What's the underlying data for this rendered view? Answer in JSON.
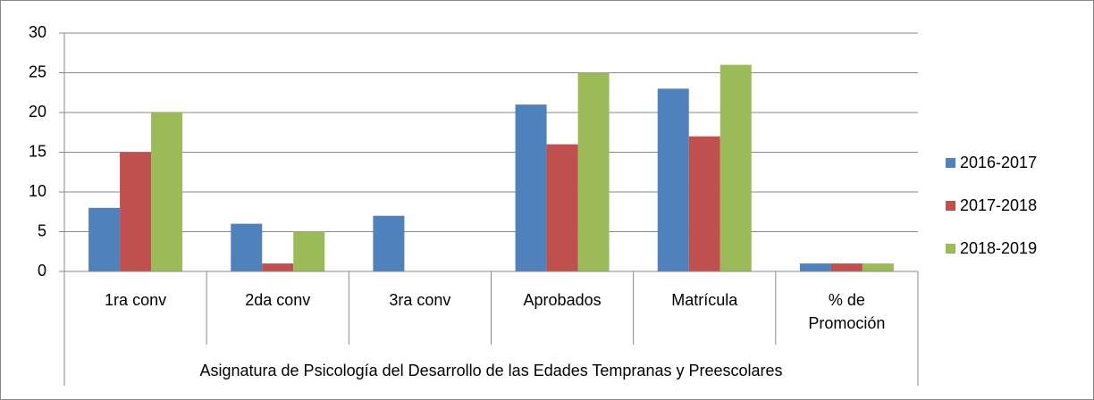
{
  "chart_data": {
    "type": "bar",
    "categories": [
      "1ra conv",
      "2da conv",
      "3ra conv",
      "Aprobados",
      "Matrícula",
      "% de Promoción"
    ],
    "group_label": "Asignatura de Psicología del Desarrollo de las Edades Tempranas y Preescolares",
    "series": [
      {
        "name": "2016-2017",
        "color": "#4f81bd",
        "values": [
          8,
          6,
          7,
          21,
          23,
          1
        ]
      },
      {
        "name": "2017-2018",
        "color": "#c0504d",
        "values": [
          15,
          1,
          0,
          16,
          17,
          1
        ]
      },
      {
        "name": "2018-2019",
        "color": "#9bbb59",
        "values": [
          20,
          5,
          0,
          25,
          26,
          1
        ]
      }
    ],
    "ylim": [
      0,
      30
    ],
    "yticks": [
      0,
      5,
      10,
      15,
      20,
      25,
      30
    ],
    "grid": true,
    "legend": "right"
  }
}
